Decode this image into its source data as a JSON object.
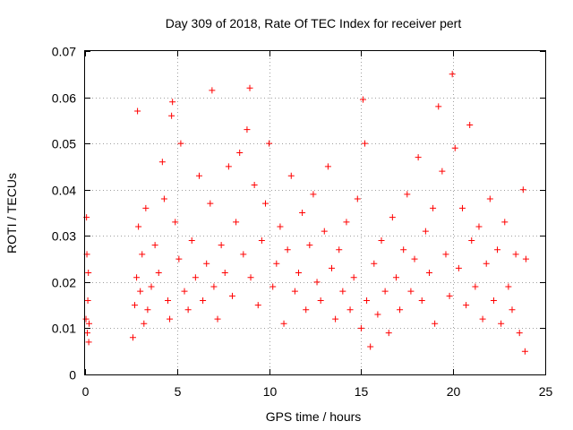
{
  "chart_data": {
    "type": "scatter",
    "title": "Day 309 of 2018, Rate Of TEC Index for receiver pert",
    "xlabel": "GPS time / hours",
    "ylabel": "ROTI / TECUs",
    "xlim": [
      0,
      25
    ],
    "ylim": [
      0,
      0.07
    ],
    "xticks": [
      0,
      5,
      10,
      15,
      20,
      25
    ],
    "xtick_labels": [
      "0",
      "5",
      "10",
      "15",
      "20",
      "25"
    ],
    "yticks": [
      0,
      0.01,
      0.02,
      0.03,
      0.04,
      0.05,
      0.06,
      0.07
    ],
    "ytick_labels": [
      "0",
      "0.01",
      "0.02",
      "0.03",
      "0.04",
      "0.05",
      "0.06",
      "0.07"
    ],
    "grid": true,
    "marker": "plus",
    "color": "#ff0000",
    "series": [
      {
        "points": [
          [
            0.05,
            0.012
          ],
          [
            0.08,
            0.034
          ],
          [
            0.1,
            0.026
          ],
          [
            0.12,
            0.009
          ],
          [
            0.15,
            0.016
          ],
          [
            0.18,
            0.022
          ],
          [
            0.2,
            0.007
          ],
          [
            0.22,
            0.011
          ],
          [
            2.6,
            0.008
          ],
          [
            2.7,
            0.015
          ],
          [
            2.8,
            0.021
          ],
          [
            2.85,
            0.057
          ],
          [
            2.9,
            0.032
          ],
          [
            3.0,
            0.018
          ],
          [
            3.1,
            0.026
          ],
          [
            3.2,
            0.011
          ],
          [
            3.3,
            0.036
          ],
          [
            3.4,
            0.014
          ],
          [
            3.6,
            0.019
          ],
          [
            3.8,
            0.028
          ],
          [
            4.0,
            0.022
          ],
          [
            4.2,
            0.046
          ],
          [
            4.3,
            0.038
          ],
          [
            4.5,
            0.016
          ],
          [
            4.6,
            0.012
          ],
          [
            4.7,
            0.056
          ],
          [
            4.75,
            0.059
          ],
          [
            4.9,
            0.033
          ],
          [
            5.1,
            0.025
          ],
          [
            5.2,
            0.05
          ],
          [
            5.4,
            0.018
          ],
          [
            5.6,
            0.014
          ],
          [
            5.8,
            0.029
          ],
          [
            6.0,
            0.021
          ],
          [
            6.2,
            0.043
          ],
          [
            6.4,
            0.016
          ],
          [
            6.6,
            0.024
          ],
          [
            6.8,
            0.037
          ],
          [
            6.9,
            0.0615
          ],
          [
            7.0,
            0.019
          ],
          [
            7.2,
            0.012
          ],
          [
            7.4,
            0.028
          ],
          [
            7.6,
            0.022
          ],
          [
            7.8,
            0.045
          ],
          [
            8.0,
            0.017
          ],
          [
            8.2,
            0.033
          ],
          [
            8.4,
            0.048
          ],
          [
            8.6,
            0.026
          ],
          [
            8.8,
            0.053
          ],
          [
            8.95,
            0.062
          ],
          [
            9.0,
            0.021
          ],
          [
            9.2,
            0.041
          ],
          [
            9.4,
            0.015
          ],
          [
            9.6,
            0.029
          ],
          [
            9.8,
            0.037
          ],
          [
            10.0,
            0.05
          ],
          [
            10.2,
            0.019
          ],
          [
            10.4,
            0.024
          ],
          [
            10.6,
            0.032
          ],
          [
            10.8,
            0.011
          ],
          [
            11.0,
            0.027
          ],
          [
            11.2,
            0.043
          ],
          [
            11.4,
            0.018
          ],
          [
            11.6,
            0.022
          ],
          [
            11.8,
            0.035
          ],
          [
            12.0,
            0.014
          ],
          [
            12.2,
            0.028
          ],
          [
            12.4,
            0.039
          ],
          [
            12.6,
            0.02
          ],
          [
            12.8,
            0.016
          ],
          [
            13.0,
            0.031
          ],
          [
            13.2,
            0.045
          ],
          [
            13.4,
            0.023
          ],
          [
            13.6,
            0.012
          ],
          [
            13.8,
            0.027
          ],
          [
            14.0,
            0.018
          ],
          [
            14.2,
            0.033
          ],
          [
            14.4,
            0.014
          ],
          [
            14.6,
            0.021
          ],
          [
            14.8,
            0.038
          ],
          [
            15.0,
            0.01
          ],
          [
            15.1,
            0.0595
          ],
          [
            15.2,
            0.05
          ],
          [
            15.3,
            0.016
          ],
          [
            15.5,
            0.006
          ],
          [
            15.7,
            0.024
          ],
          [
            15.9,
            0.013
          ],
          [
            16.1,
            0.029
          ],
          [
            16.3,
            0.018
          ],
          [
            16.5,
            0.009
          ],
          [
            16.7,
            0.034
          ],
          [
            16.9,
            0.021
          ],
          [
            17.1,
            0.014
          ],
          [
            17.3,
            0.027
          ],
          [
            17.5,
            0.039
          ],
          [
            17.7,
            0.018
          ],
          [
            17.9,
            0.025
          ],
          [
            18.1,
            0.047
          ],
          [
            18.3,
            0.016
          ],
          [
            18.5,
            0.031
          ],
          [
            18.7,
            0.022
          ],
          [
            18.9,
            0.036
          ],
          [
            19.0,
            0.011
          ],
          [
            19.2,
            0.058
          ],
          [
            19.4,
            0.044
          ],
          [
            19.6,
            0.026
          ],
          [
            19.8,
            0.017
          ],
          [
            19.95,
            0.065
          ],
          [
            20.1,
            0.049
          ],
          [
            20.3,
            0.023
          ],
          [
            20.5,
            0.036
          ],
          [
            20.7,
            0.015
          ],
          [
            20.9,
            0.054
          ],
          [
            21.0,
            0.029
          ],
          [
            21.2,
            0.019
          ],
          [
            21.4,
            0.032
          ],
          [
            21.6,
            0.012
          ],
          [
            21.8,
            0.024
          ],
          [
            22.0,
            0.038
          ],
          [
            22.2,
            0.016
          ],
          [
            22.4,
            0.027
          ],
          [
            22.6,
            0.011
          ],
          [
            22.8,
            0.033
          ],
          [
            23.0,
            0.019
          ],
          [
            23.2,
            0.014
          ],
          [
            23.4,
            0.026
          ],
          [
            23.6,
            0.009
          ],
          [
            23.8,
            0.04
          ],
          [
            23.9,
            0.005
          ],
          [
            23.95,
            0.025
          ]
        ]
      }
    ]
  }
}
